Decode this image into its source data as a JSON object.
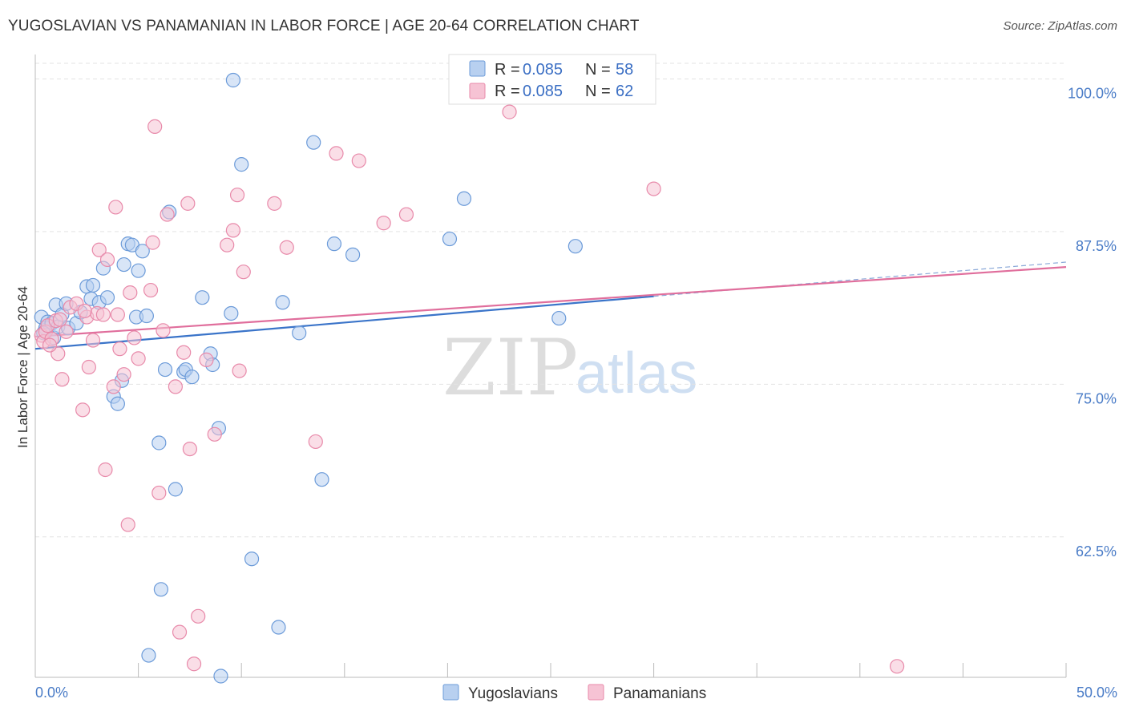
{
  "title": "YUGOSLAVIAN VS PANAMANIAN IN LABOR FORCE | AGE 20-64 CORRELATION CHART",
  "source": "Source: ZipAtlas.com",
  "watermark": {
    "zip": "ZIP",
    "atlas": "atlas"
  },
  "colors": {
    "blue_fill": "#b8d0f0",
    "blue_stroke": "#6c9bd9",
    "blue_line": "#3a74c9",
    "pink_fill": "#f6c3d4",
    "pink_stroke": "#e88aaa",
    "pink_line": "#e06e9c",
    "grid": "#e3e3e3",
    "tick_label": "#4a7cc7"
  },
  "legend": {
    "row1": {
      "r_label": "R = ",
      "r_value": "0.085",
      "n_label": "N = ",
      "n_value": "58"
    },
    "row2": {
      "r_label": "R = ",
      "r_value": "0.085",
      "n_label": "N = ",
      "n_value": "62"
    }
  },
  "chart_data": {
    "type": "scatter",
    "ylabel": "In Labor Force | Age 20-64",
    "xlim": [
      0,
      50
    ],
    "ylim": [
      51,
      102
    ],
    "x_tick_labels": [
      "0.0%",
      "50.0%"
    ],
    "y_ticks": [
      {
        "value": 100.0,
        "label": "100.0%"
      },
      {
        "value": 87.5,
        "label": "87.5%"
      },
      {
        "value": 75.0,
        "label": "75.0%"
      },
      {
        "value": 62.5,
        "label": "62.5%"
      }
    ],
    "grid": "horizontal dashed",
    "series": [
      {
        "name": "Yugoslavians",
        "trend": {
          "x0": 0,
          "y0": 77.9,
          "x1": 30,
          "y1": 82.2,
          "dashed_to_x": 50,
          "dashed_to_y": 85.0
        },
        "points": [
          [
            0.3,
            80.5
          ],
          [
            0.5,
            79.6
          ],
          [
            0.6,
            80.1
          ],
          [
            0.8,
            80.0
          ],
          [
            0.9,
            78.8
          ],
          [
            1.0,
            81.5
          ],
          [
            1.1,
            79.7
          ],
          [
            1.3,
            80.7
          ],
          [
            1.5,
            81.6
          ],
          [
            1.6,
            79.6
          ],
          [
            2.0,
            80.0
          ],
          [
            2.2,
            80.9
          ],
          [
            2.5,
            83.0
          ],
          [
            2.7,
            82.0
          ],
          [
            2.8,
            83.1
          ],
          [
            3.1,
            81.7
          ],
          [
            3.3,
            84.5
          ],
          [
            3.5,
            82.1
          ],
          [
            3.8,
            74.0
          ],
          [
            4.0,
            73.4
          ],
          [
            4.2,
            75.3
          ],
          [
            4.3,
            84.8
          ],
          [
            4.5,
            86.5
          ],
          [
            4.7,
            86.4
          ],
          [
            4.9,
            80.5
          ],
          [
            5.0,
            84.3
          ],
          [
            5.2,
            85.9
          ],
          [
            5.4,
            80.6
          ],
          [
            6.0,
            70.2
          ],
          [
            6.1,
            58.2
          ],
          [
            6.3,
            76.2
          ],
          [
            6.5,
            89.1
          ],
          [
            6.8,
            66.4
          ],
          [
            7.2,
            76.0
          ],
          [
            7.3,
            76.2
          ],
          [
            7.6,
            75.6
          ],
          [
            8.1,
            82.1
          ],
          [
            8.5,
            77.5
          ],
          [
            8.6,
            76.6
          ],
          [
            8.9,
            71.4
          ],
          [
            9.5,
            80.8
          ],
          [
            9.6,
            99.9
          ],
          [
            10.0,
            93.0
          ],
          [
            10.5,
            60.7
          ],
          [
            11.8,
            55.1
          ],
          [
            12.0,
            81.7
          ],
          [
            12.8,
            79.2
          ],
          [
            13.5,
            94.8
          ],
          [
            13.9,
            67.2
          ],
          [
            14.5,
            86.5
          ],
          [
            15.4,
            85.6
          ],
          [
            20.1,
            86.9
          ],
          [
            20.8,
            90.2
          ],
          [
            25.4,
            80.4
          ],
          [
            5.5,
            52.8
          ],
          [
            9.0,
            51.1
          ],
          [
            0.4,
            79.2
          ],
          [
            26.2,
            86.3
          ]
        ]
      },
      {
        "name": "Panamanians",
        "trend": {
          "x0": 0,
          "y0": 78.9,
          "x1": 50,
          "y1": 84.6
        },
        "points": [
          [
            0.3,
            79.0
          ],
          [
            0.4,
            78.5
          ],
          [
            0.5,
            79.3
          ],
          [
            0.6,
            79.8
          ],
          [
            0.8,
            78.7
          ],
          [
            1.0,
            80.2
          ],
          [
            1.1,
            77.5
          ],
          [
            1.3,
            75.4
          ],
          [
            1.5,
            79.3
          ],
          [
            1.7,
            81.3
          ],
          [
            2.0,
            81.6
          ],
          [
            2.3,
            72.9
          ],
          [
            2.5,
            80.5
          ],
          [
            2.6,
            76.4
          ],
          [
            2.8,
            78.6
          ],
          [
            3.0,
            80.8
          ],
          [
            3.1,
            86.0
          ],
          [
            3.3,
            80.7
          ],
          [
            3.4,
            68.0
          ],
          [
            3.5,
            85.2
          ],
          [
            3.8,
            74.8
          ],
          [
            3.9,
            89.5
          ],
          [
            4.0,
            80.7
          ],
          [
            4.3,
            75.8
          ],
          [
            4.5,
            63.5
          ],
          [
            4.6,
            82.5
          ],
          [
            4.8,
            78.8
          ],
          [
            5.0,
            77.1
          ],
          [
            5.6,
            82.7
          ],
          [
            5.7,
            86.6
          ],
          [
            5.8,
            96.1
          ],
          [
            6.0,
            66.1
          ],
          [
            6.2,
            79.4
          ],
          [
            6.8,
            74.8
          ],
          [
            7.0,
            54.7
          ],
          [
            7.2,
            77.6
          ],
          [
            7.4,
            89.8
          ],
          [
            7.5,
            69.7
          ],
          [
            7.7,
            52.1
          ],
          [
            7.9,
            56.0
          ],
          [
            8.3,
            77.0
          ],
          [
            8.7,
            70.9
          ],
          [
            9.3,
            86.4
          ],
          [
            9.6,
            87.6
          ],
          [
            9.8,
            90.5
          ],
          [
            9.9,
            76.1
          ],
          [
            10.1,
            84.2
          ],
          [
            11.6,
            89.8
          ],
          [
            12.2,
            86.2
          ],
          [
            13.6,
            70.3
          ],
          [
            14.6,
            93.9
          ],
          [
            15.7,
            93.3
          ],
          [
            16.9,
            88.2
          ],
          [
            18.0,
            88.9
          ],
          [
            23.0,
            97.3
          ],
          [
            30.0,
            91.0
          ],
          [
            41.8,
            51.9
          ],
          [
            6.4,
            88.9
          ],
          [
            2.4,
            81.0
          ],
          [
            1.2,
            80.3
          ],
          [
            0.7,
            78.2
          ],
          [
            4.1,
            77.9
          ]
        ]
      }
    ]
  }
}
